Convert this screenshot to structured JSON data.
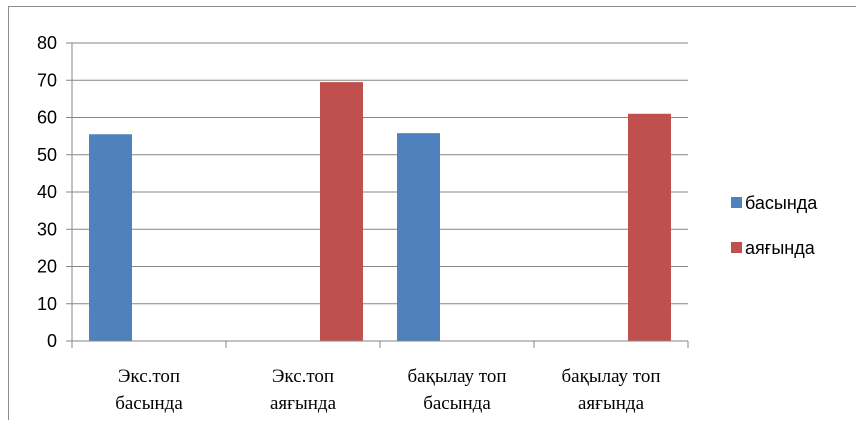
{
  "chart_data": {
    "type": "bar",
    "categories": [
      [
        "Экс.топ",
        "басында"
      ],
      [
        "Экс.топ",
        "аяғында"
      ],
      [
        "бақылау топ",
        "басында"
      ],
      [
        "бақылау топ",
        "аяғында"
      ]
    ],
    "series": [
      {
        "name": "басында",
        "color": "#4f81bd",
        "values": [
          55.5,
          null,
          55.8,
          null
        ]
      },
      {
        "name": "аяғында",
        "color": "#c0504d",
        "values": [
          null,
          69.5,
          null,
          61
        ]
      }
    ],
    "ylim": [
      0,
      80
    ],
    "yticks": [
      0,
      10,
      20,
      30,
      40,
      50,
      60,
      70,
      80
    ],
    "grid": true,
    "legend_position": "right"
  }
}
